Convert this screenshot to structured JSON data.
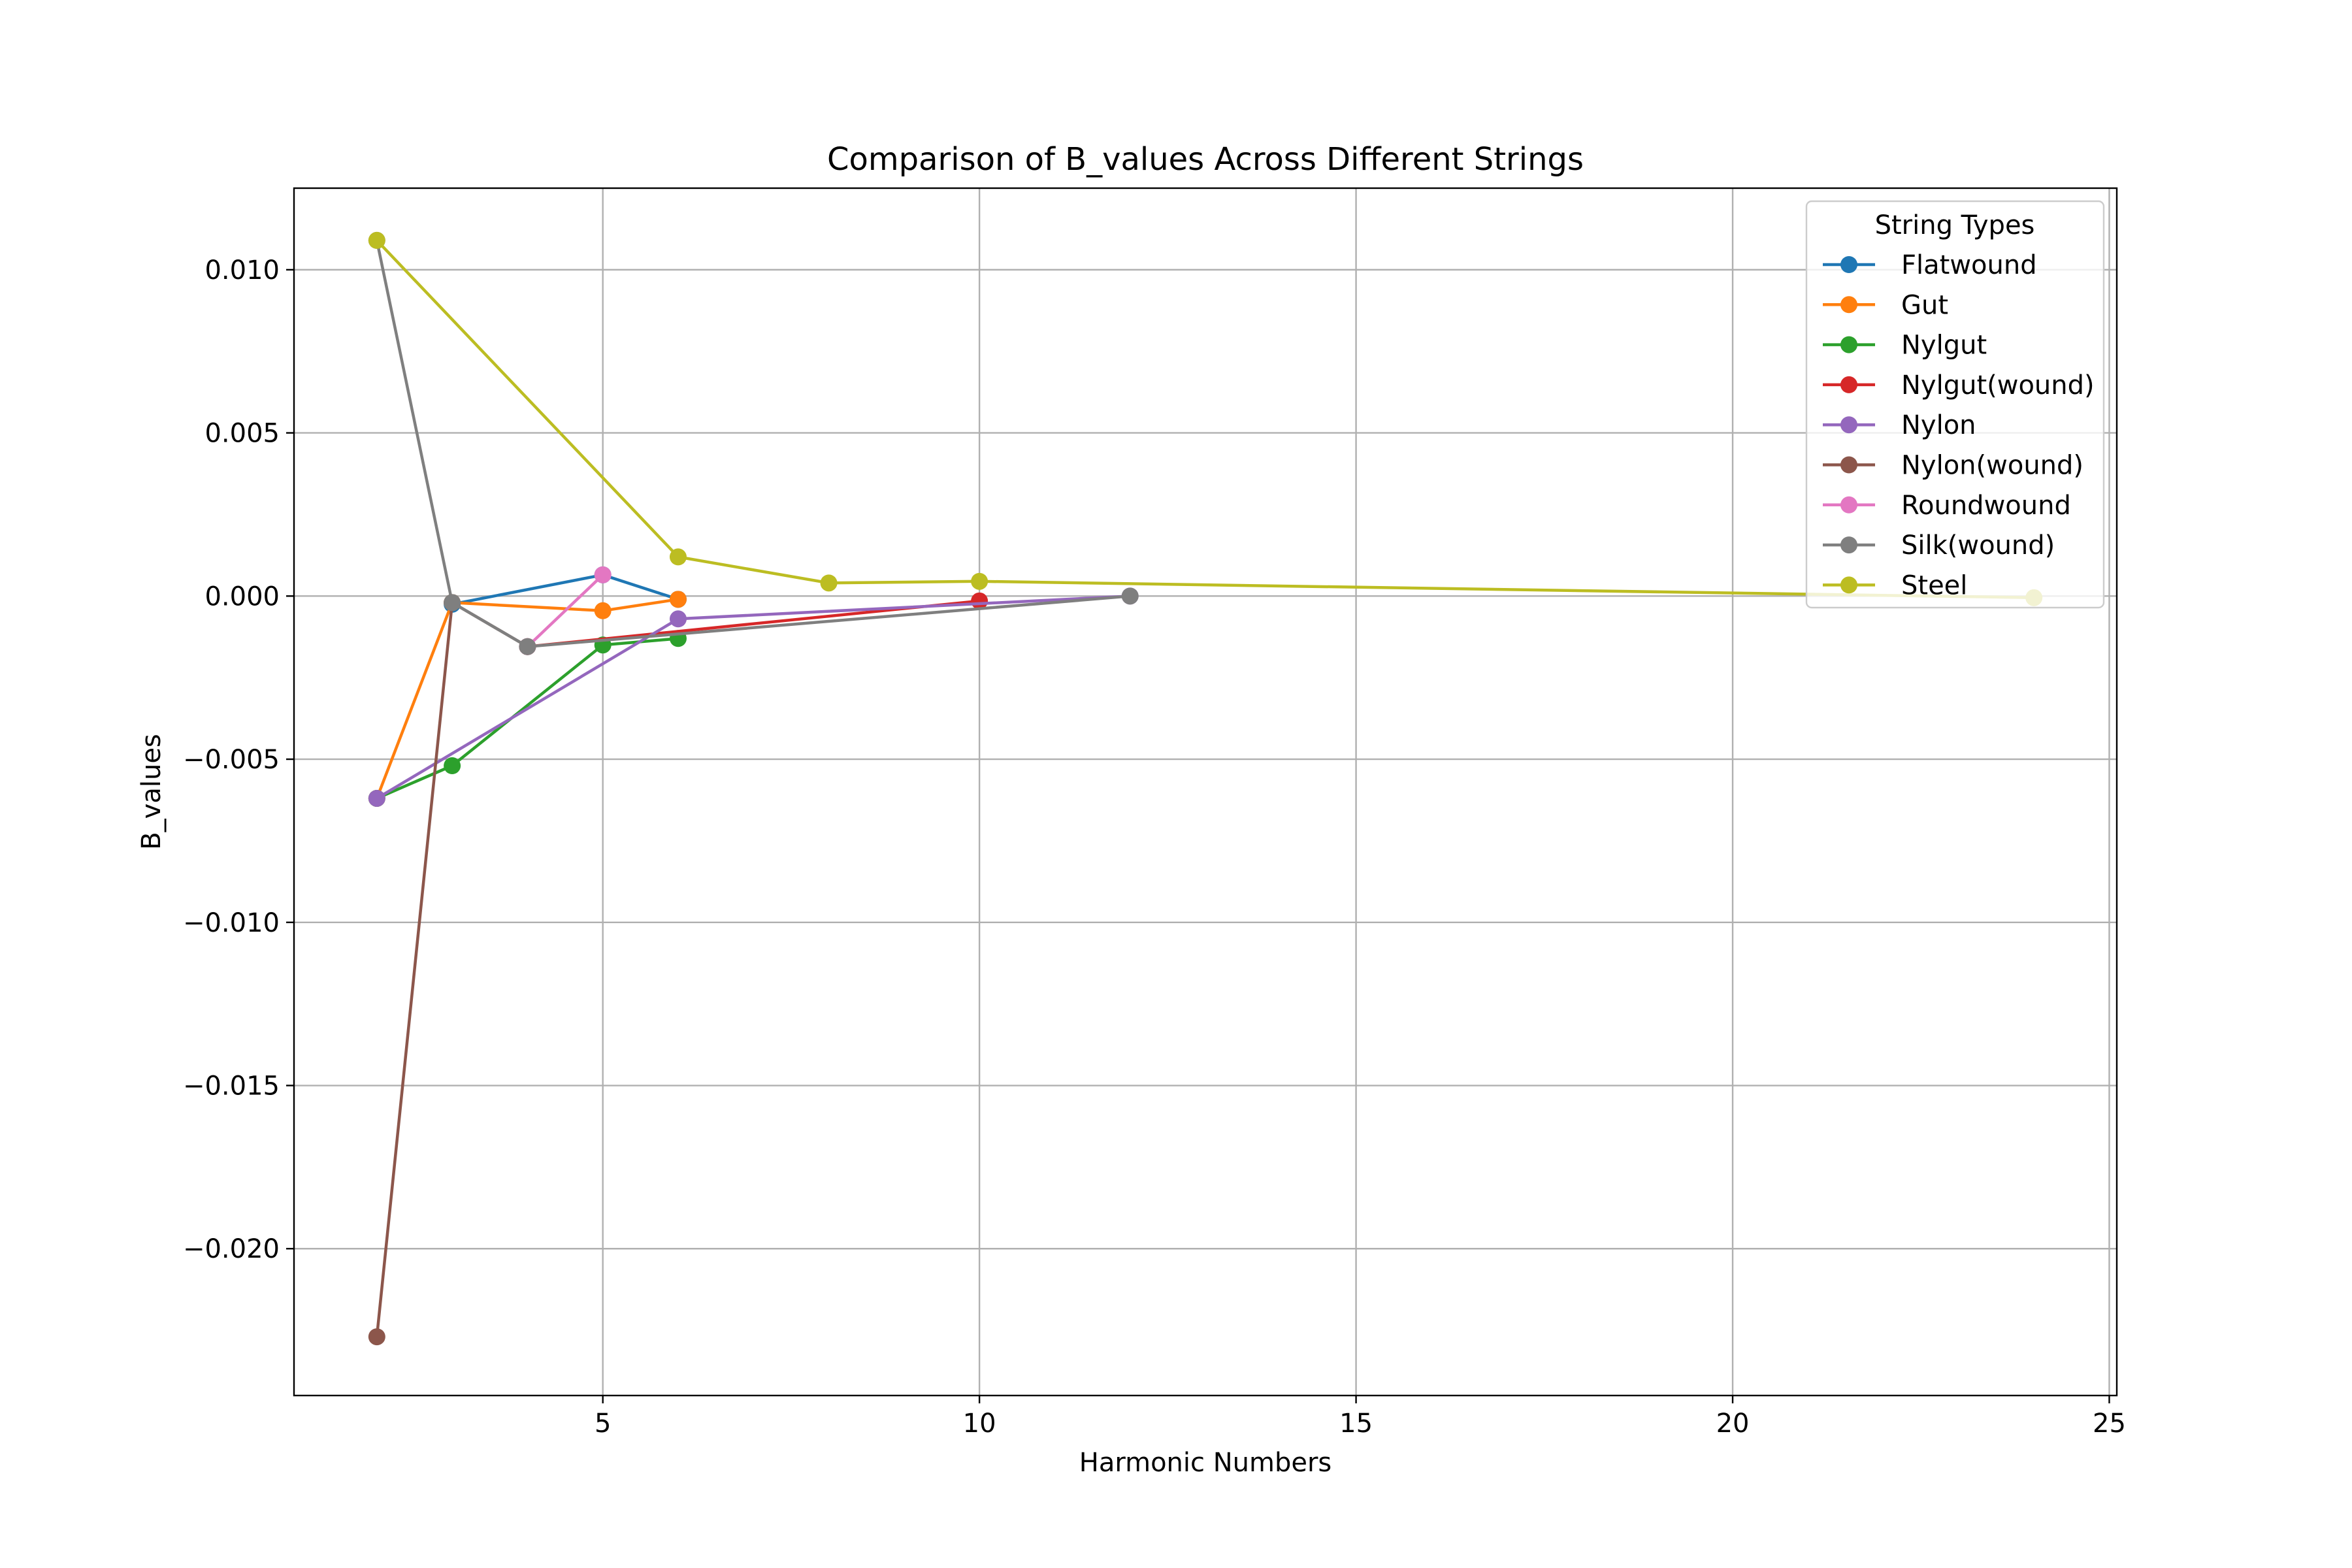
{
  "chart_data": {
    "type": "line",
    "title": "Comparison of B_values Across Different Strings",
    "xlabel": "Harmonic Numbers",
    "ylabel": "B_values",
    "xlim": [
      0.9,
      25.1
    ],
    "ylim": [
      -0.0245,
      0.0125
    ],
    "xticks": [
      5,
      10,
      15,
      20,
      25
    ],
    "xtick_labels": [
      "5",
      "10",
      "15",
      "20",
      "25"
    ],
    "yticks": [
      0.01,
      0.005,
      0.0,
      -0.005,
      -0.01,
      -0.015,
      -0.02
    ],
    "ytick_labels": [
      "0.010",
      "0.005",
      "0.000",
      "−0.005",
      "−0.010",
      "−0.015",
      "−0.020"
    ],
    "grid": true,
    "legend": {
      "title": "String Types",
      "placement": "top-right"
    },
    "series": [
      {
        "name": "Flatwound",
        "color": "#1f77b4",
        "x": [
          3,
          5,
          6
        ],
        "y": [
          -0.00025,
          0.00065,
          -0.0001
        ]
      },
      {
        "name": "Gut",
        "color": "#ff7f0e",
        "x": [
          2,
          3,
          5,
          6
        ],
        "y": [
          -0.0062,
          -0.0002,
          -0.00045,
          -0.0001
        ]
      },
      {
        "name": "Nylgut",
        "color": "#2ca02c",
        "x": [
          2,
          3,
          5,
          6
        ],
        "y": [
          -0.0062,
          -0.0052,
          -0.0015,
          -0.0013
        ]
      },
      {
        "name": "Nylgut(wound)",
        "color": "#d62728",
        "x": [
          4,
          10
        ],
        "y": [
          -0.00155,
          -0.00015
        ]
      },
      {
        "name": "Nylon",
        "color": "#9467bd",
        "x": [
          2,
          6,
          12
        ],
        "y": [
          -0.0062,
          -0.0007,
          0.0
        ]
      },
      {
        "name": "Nylon(wound)",
        "color": "#8c564b",
        "x": [
          2,
          3,
          4
        ],
        "y": [
          -0.0227,
          -0.0002,
          -0.00155
        ]
      },
      {
        "name": "Roundwound",
        "color": "#e377c2",
        "x": [
          4,
          5
        ],
        "y": [
          -0.00155,
          0.00065
        ]
      },
      {
        "name": "Silk(wound)",
        "color": "#7f7f7f",
        "x": [
          2,
          3,
          4,
          12
        ],
        "y": [
          0.0109,
          -0.0002,
          -0.00155,
          0.0
        ]
      },
      {
        "name": "Steel",
        "color": "#bcbd22",
        "x": [
          2,
          6,
          8,
          10,
          24
        ],
        "y": [
          0.0109,
          0.0012,
          0.0004,
          0.00045,
          -5e-05
        ]
      }
    ]
  }
}
